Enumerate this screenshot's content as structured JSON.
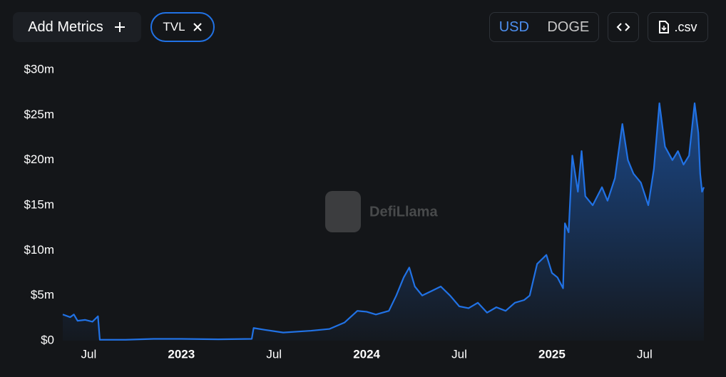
{
  "ui": {
    "add_metrics": "Add Metrics",
    "metric_tag": "TVL",
    "currency_active": "USD",
    "currency_other": "DOGE",
    "csv": ".csv",
    "watermark": "DefiLlama"
  },
  "chart_data": {
    "type": "area",
    "color": "#2172e5",
    "x": [
      2022.36,
      2022.4,
      2022.42,
      2022.44,
      2022.48,
      2022.52,
      2022.55,
      2022.56,
      2022.7,
      2022.85,
      2023.0,
      2023.2,
      2023.38,
      2023.39,
      2023.45,
      2023.55,
      2023.7,
      2023.8,
      2023.88,
      2023.95,
      2024.0,
      2024.05,
      2024.12,
      2024.16,
      2024.2,
      2024.23,
      2024.26,
      2024.3,
      2024.35,
      2024.4,
      2024.45,
      2024.5,
      2024.55,
      2024.6,
      2024.65,
      2024.7,
      2024.75,
      2024.8,
      2024.85,
      2024.88,
      2024.92,
      2024.97,
      2025.0,
      2025.03,
      2025.06,
      2025.07,
      2025.09,
      2025.11,
      2025.14,
      2025.16,
      2025.18,
      2025.22,
      2025.27,
      2025.3,
      2025.34,
      2025.38,
      2025.41,
      2025.44,
      2025.48,
      2025.52,
      2025.55,
      2025.58,
      2025.61,
      2025.65,
      2025.68,
      2025.71,
      2025.74,
      2025.77,
      2025.79,
      2025.8,
      2025.81,
      2025.82
    ],
    "values": [
      2.9,
      2.6,
      2.9,
      2.2,
      2.3,
      2.1,
      2.7,
      0.1,
      0.1,
      0.2,
      0.2,
      0.15,
      0.2,
      1.4,
      1.2,
      0.9,
      1.1,
      1.3,
      2.0,
      3.3,
      3.2,
      2.9,
      3.3,
      5.0,
      7.0,
      8.1,
      6.0,
      5.0,
      5.5,
      6.0,
      5.0,
      3.8,
      3.6,
      4.2,
      3.1,
      3.7,
      3.3,
      4.2,
      4.5,
      5.0,
      8.5,
      9.5,
      7.5,
      7.0,
      5.8,
      13.0,
      12.0,
      20.5,
      16.5,
      21.0,
      16.0,
      15.0,
      17.0,
      15.5,
      18.0,
      24.0,
      20.0,
      18.5,
      17.5,
      15.0,
      19.0,
      26.3,
      21.5,
      20.0,
      21.0,
      19.5,
      20.5,
      26.3,
      23.0,
      18.5,
      16.5,
      17.0
    ],
    "xlim": [
      2022.36,
      2025.82
    ],
    "xticks": [
      {
        "value": 2022.5,
        "label": "Jul"
      },
      {
        "value": 2023,
        "label": "2023"
      },
      {
        "value": 2023.5,
        "label": "Jul"
      },
      {
        "value": 2024,
        "label": "2024"
      },
      {
        "value": 2024.5,
        "label": "Jul"
      },
      {
        "value": 2025,
        "label": "2025"
      },
      {
        "value": 2025.5,
        "label": "Jul"
      }
    ],
    "ylim": [
      0,
      30
    ],
    "yticks": [
      {
        "value": 0,
        "label": "$0"
      },
      {
        "value": 5,
        "label": "$5m"
      },
      {
        "value": 10,
        "label": "$10m"
      },
      {
        "value": 15,
        "label": "$15m"
      },
      {
        "value": 20,
        "label": "$20m"
      },
      {
        "value": 25,
        "label": "$25m"
      },
      {
        "value": 30,
        "label": "$30m"
      }
    ]
  }
}
